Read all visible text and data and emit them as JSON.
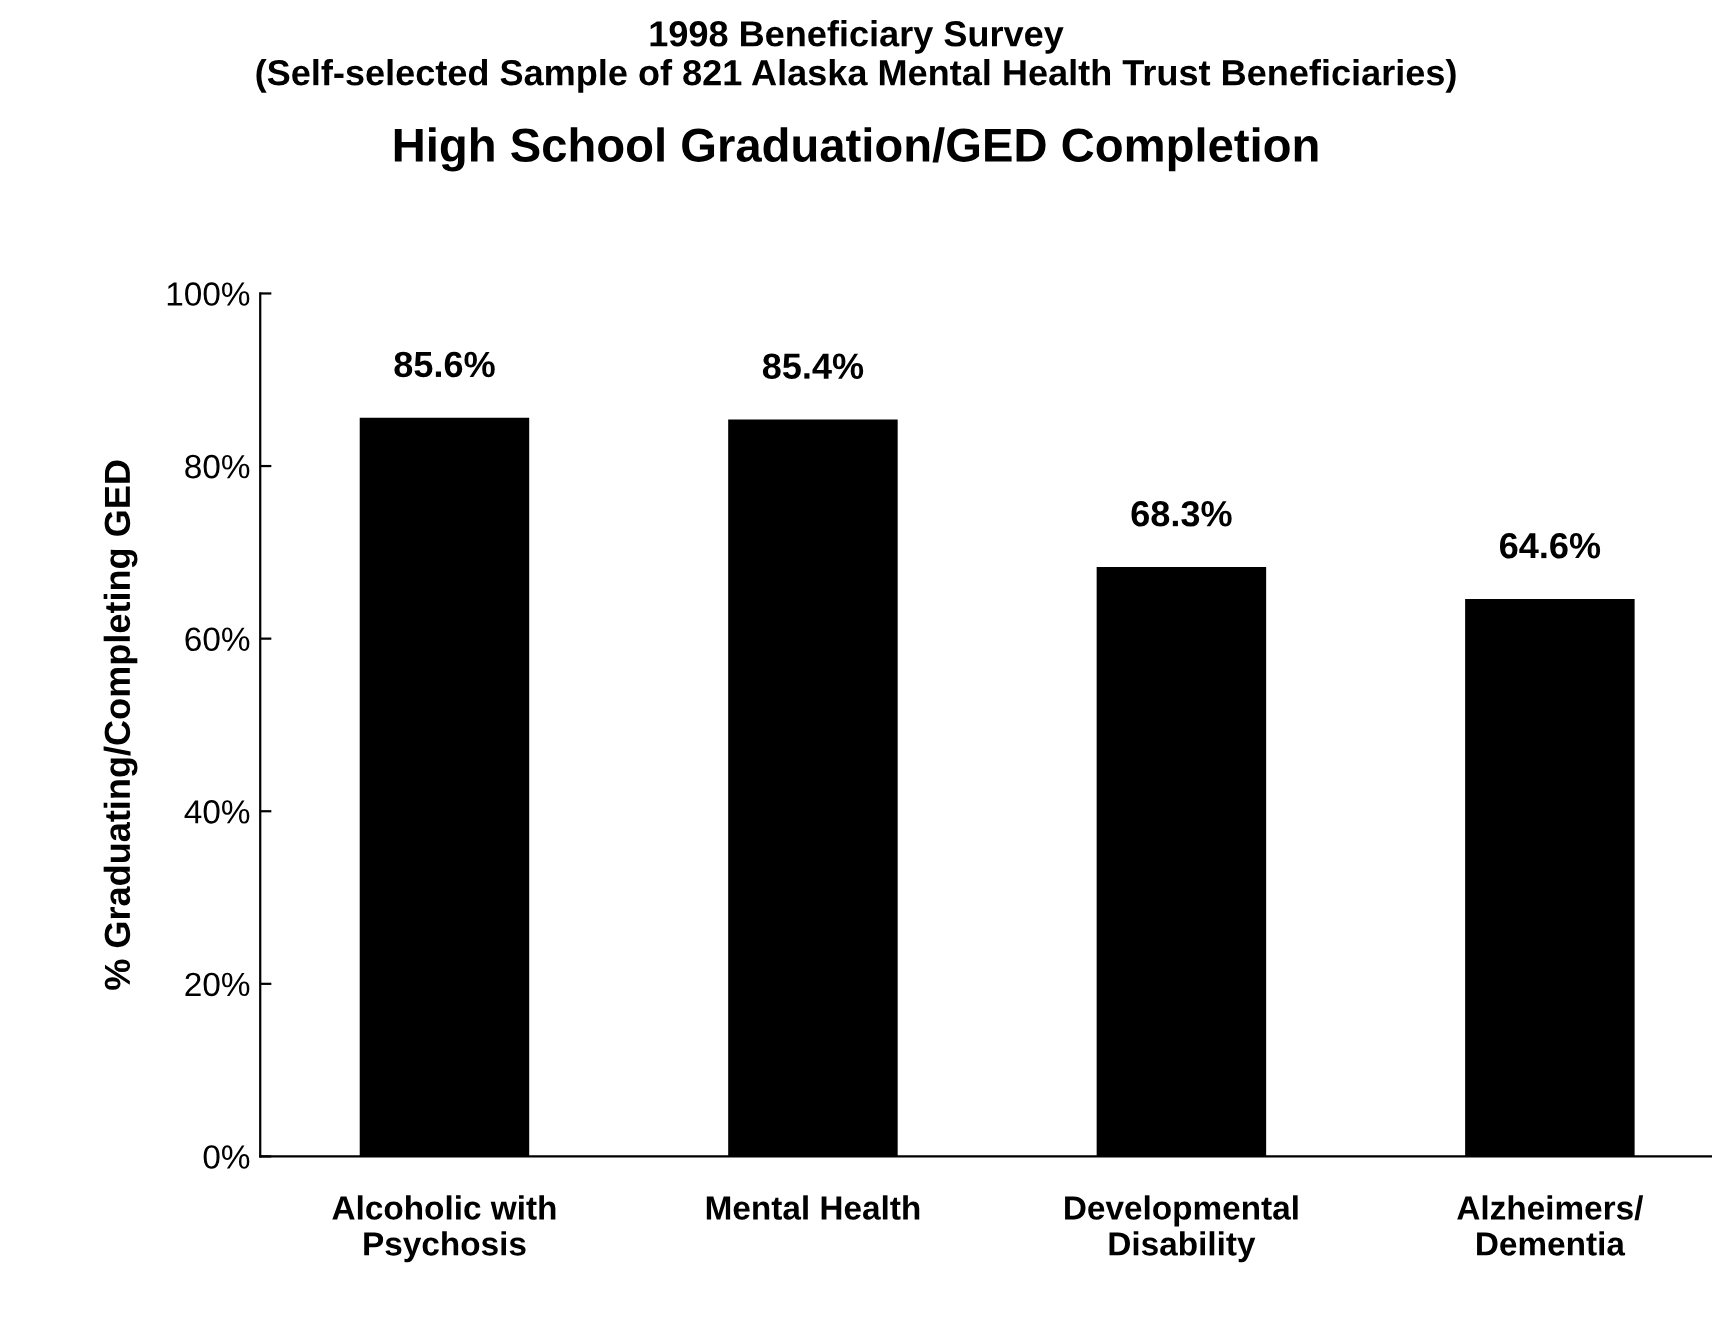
{
  "chart_data": {
    "type": "bar",
    "title": "1998 Beneficiary Survey\n(Self-selected Sample of 821 Alaska Mental Health Trust Beneficiaries)",
    "subtitle": "High School Graduation/GED Completion",
    "ylabel": "% Graduating/Completing GED",
    "categories": [
      "Alcoholic with\nPsychosis",
      "Mental Health",
      "Developmental\nDisability",
      "Alzheimers/\nDementia"
    ],
    "values": [
      85.6,
      85.4,
      68.3,
      64.6
    ],
    "color": "#000000",
    "value_labels": [
      "85.6%",
      "85.4%",
      "68.3%",
      "64.6%"
    ],
    "ylim": [
      0,
      100
    ],
    "yticks": [
      {
        "value": 0,
        "label": "0%"
      },
      {
        "value": 20,
        "label": "20%"
      },
      {
        "value": 40,
        "label": "40%"
      },
      {
        "value": 60,
        "label": "60%"
      },
      {
        "value": 80,
        "label": "80%"
      },
      {
        "value": 100,
        "label": "100%"
      }
    ],
    "grid": false,
    "legend": false
  }
}
